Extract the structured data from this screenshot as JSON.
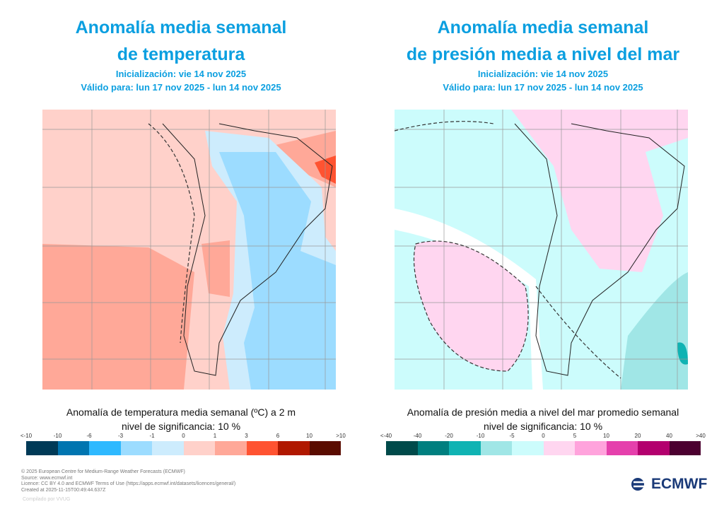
{
  "left": {
    "title1": "Anomalía media semanal",
    "title2": "de temperatura",
    "init": "Inicialización: vie 14 nov 2025",
    "valid": "Válido para: lun 17 nov 2025 - lun 14 nov 2025",
    "caption1": "Anomalía de temperatura media semanal (ºC) a 2 m",
    "caption2": "nivel de significancia: 10 %",
    "ticks": [
      "<-10",
      "-10",
      "-6",
      "-3",
      "-1",
      "0",
      "1",
      "3",
      "6",
      "10",
      ">10"
    ],
    "colors": [
      "#003a57",
      "#0075b0",
      "#2eb9ff",
      "#9cdcff",
      "#cdecfd",
      "#ffd1ca",
      "#ffa898",
      "#ff5331",
      "#b01800",
      "#5a0c00"
    ]
  },
  "right": {
    "title1": "Anomalía media semanal",
    "title2": "de presión media a nivel del mar",
    "init": "Inicialización: vie 14 nov 2025",
    "valid": "Válido para: lun 17 nov 2025 - lun 14 nov 2025",
    "caption1": "Anomalía de presión media a nivel del mar promedio semanal",
    "caption2": "nivel de significancia: 10 %",
    "ticks": [
      "<-40",
      "-40",
      "-20",
      "-10",
      "-5",
      "0",
      "5",
      "10",
      "20",
      "40",
      ">40"
    ],
    "colors": [
      "#004a4a",
      "#007f7f",
      "#10b3b3",
      "#a0e6e6",
      "#ccfcfc",
      "#ffd6f0",
      "#ffa3dc",
      "#e540ac",
      "#b3006e",
      "#4c0030"
    ]
  },
  "footer": {
    "l1": "© 2025 European Centre for Medium-Range Weather Forecasts (ECMWF)",
    "l2": "Source: www.ecmwf.int",
    "l3": "Licence: CC BY 4.0 and ECMWF Terms of Use (https://apps.ecmwf.int/datasets/licences/general/)",
    "l4": "Created at 2025-11-15T00:49:44.637Z",
    "compiled": "Compilado por VVUG",
    "logo": "ECMWF",
    "logo_icon": "ecmwf-logo-icon"
  }
}
